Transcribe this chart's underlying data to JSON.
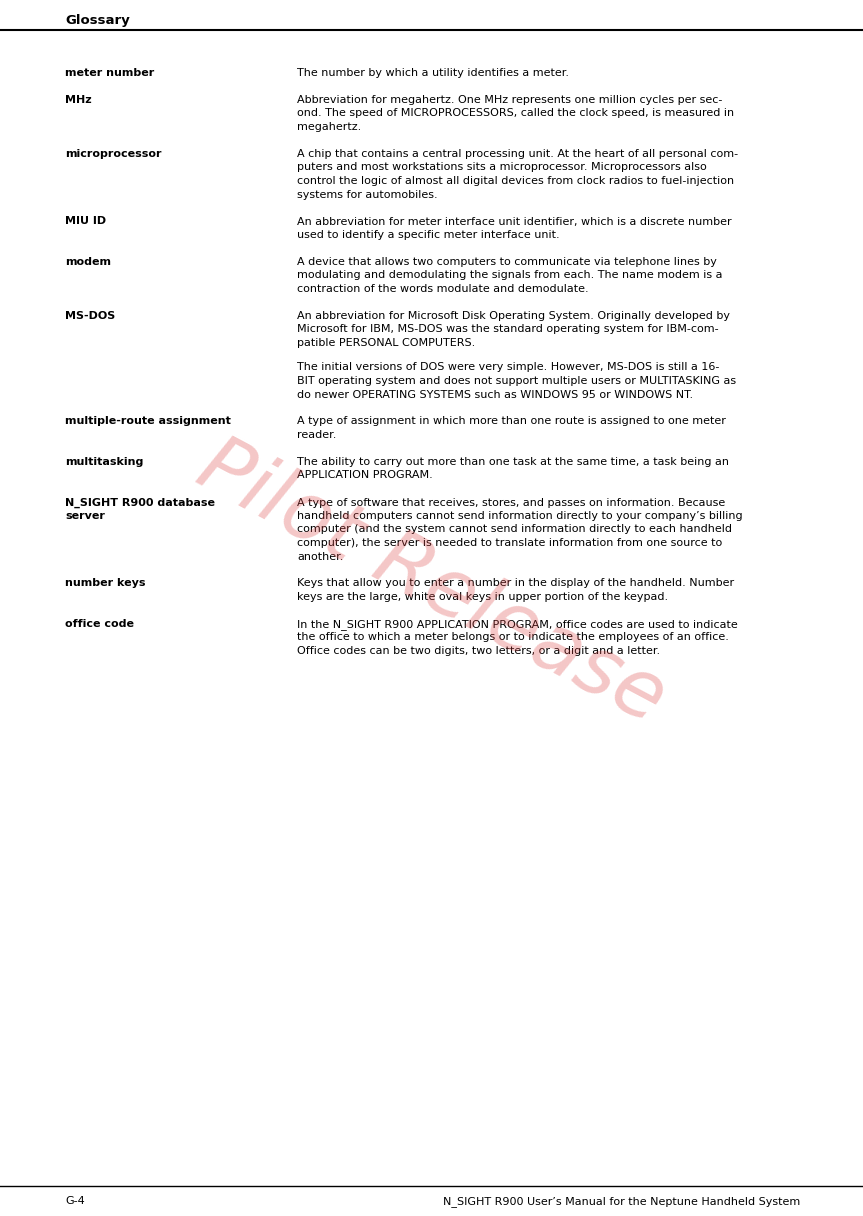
{
  "page_title": "Glossary",
  "footer_left": "G-4",
  "footer_right": "N_SIGHT R900 User’s Manual for the Neptune Handheld System",
  "watermark": "Pilot Release",
  "bg_color": "#ffffff",
  "entries": [
    {
      "term": "meter number",
      "paragraphs": [
        "The number by which a utility identifies a meter."
      ]
    },
    {
      "term": "MHz",
      "paragraphs": [
        "Abbreviation for megahertz. One MHz represents one million cycles per sec-\nond. The speed of MICROPROCESSORS, called the clock speed, is measured in\nmegahertz."
      ]
    },
    {
      "term": "microprocessor",
      "paragraphs": [
        "A chip that contains a central processing unit. At the heart of all personal com-\nputers and most workstations sits a microprocessor. Microprocessors also\ncontrol the logic of almost all digital devices from clock radios to fuel-injection\nsystems for automobiles."
      ]
    },
    {
      "term": "MIU ID",
      "paragraphs": [
        "An abbreviation for meter interface unit identifier, which is a discrete number\nused to identify a specific meter interface unit."
      ]
    },
    {
      "term": "modem",
      "paragraphs": [
        "A device that allows two computers to communicate via telephone lines by\nmodulating and demodulating the signals from each. The name modem is a\ncontraction of the words modulate and demodulate."
      ]
    },
    {
      "term": "MS-DOS",
      "paragraphs": [
        "An abbreviation for Microsoft Disk Operating System. Originally developed by\nMicrosoft for IBM, MS-DOS was the standard operating system for IBM-com-\npatible PERSONAL COMPUTERS.",
        "The initial versions of DOS were very simple. However, MS-DOS is still a 16-\nBIT operating system and does not support multiple users or MULTITASKING as\ndo newer OPERATING SYSTEMS such as WINDOWS 95 or WINDOWS NT."
      ]
    },
    {
      "term": "multiple-route assignment",
      "paragraphs": [
        "A type of assignment in which more than one route is assigned to one meter\nreader."
      ]
    },
    {
      "term": "multitasking",
      "paragraphs": [
        "The ability to carry out more than one task at the same time, a task being an\nAPPLICATION PROGRAM."
      ]
    },
    {
      "term": "N_SIGHT R900 database\nserver",
      "paragraphs": [
        "A type of software that receives, stores, and passes on information. Because\nhandheld computers cannot send information directly to your company’s billing\ncomputer (and the system cannot send information directly to each handheld\ncomputer), the server is needed to translate information from one source to\nanother."
      ]
    },
    {
      "term": "number keys",
      "paragraphs": [
        "Keys that allow you to enter a number in the display of the handheld. Number\nkeys are the large, white oval keys in upper portion of the keypad."
      ]
    },
    {
      "term": "office code",
      "paragraphs": [
        "In the N_SIGHT R900 APPLICATION PROGRAM, office codes are used to indicate\nthe office to which a meter belongs or to indicate the employees of an office.\nOffice codes can be two digits, two letters, or a digit and a letter."
      ]
    }
  ]
}
